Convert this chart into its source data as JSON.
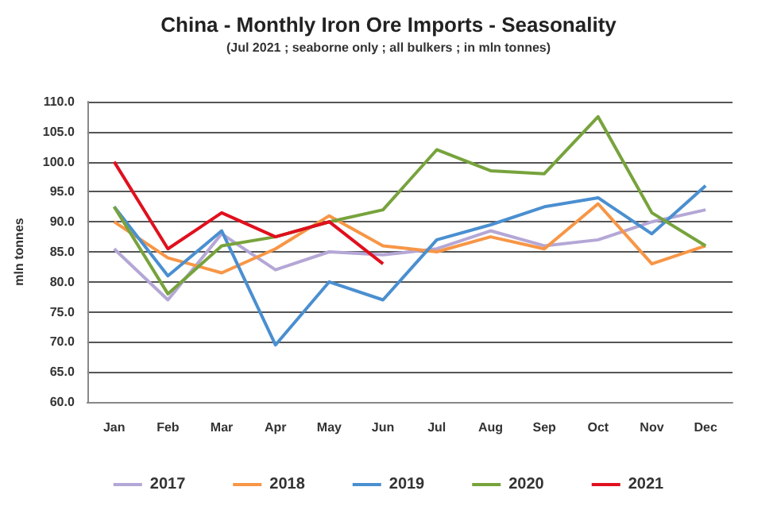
{
  "chart_data": {
    "type": "line",
    "title": "China - Monthly Iron Ore Imports - Seasonality",
    "subtitle": "(Jul 2021 ; seaborne only ; all bulkers ; in mln tonnes)",
    "ylabel": "mln tonnes",
    "categories": [
      "Jan",
      "Feb",
      "Mar",
      "Apr",
      "May",
      "Jun",
      "Jul",
      "Aug",
      "Sep",
      "Oct",
      "Nov",
      "Dec"
    ],
    "series": [
      {
        "name": "2017",
        "color": "#b4a7d6",
        "values": [
          85.5,
          77,
          88,
          82,
          85,
          84.5,
          85.5,
          88.5,
          86,
          87,
          90,
          92
        ]
      },
      {
        "name": "2018",
        "color": "#f79646",
        "values": [
          90,
          84,
          81.5,
          85.5,
          91,
          86,
          85,
          87.5,
          85.5,
          93,
          83,
          86
        ]
      },
      {
        "name": "2019",
        "color": "#4a8fd0",
        "values": [
          92.5,
          81,
          88.5,
          69.5,
          80,
          77,
          87,
          89.5,
          92.5,
          94,
          88,
          96
        ]
      },
      {
        "name": "2020",
        "color": "#77a33c",
        "values": [
          92.5,
          78,
          86,
          87.5,
          90,
          92,
          102,
          98.5,
          98,
          107.5,
          91.5,
          86
        ]
      },
      {
        "name": "2021",
        "color": "#e0101e",
        "values": [
          100,
          85.5,
          91.5,
          87.5,
          90,
          83,
          null,
          null,
          null,
          null,
          null,
          null
        ]
      }
    ],
    "ylim": [
      60,
      110
    ],
    "yticks": [
      {
        "value": 60,
        "label": "60.0"
      },
      {
        "value": 65,
        "label": "65.0"
      },
      {
        "value": 70,
        "label": "70.0"
      },
      {
        "value": 75,
        "label": "75.0"
      },
      {
        "value": 80,
        "label": "80.0"
      },
      {
        "value": 85,
        "label": "85.0"
      },
      {
        "value": 90,
        "label": "90.0"
      },
      {
        "value": 95,
        "label": "95.0"
      },
      {
        "value": 100,
        "label": "100.0"
      },
      {
        "value": 105,
        "label": "105.0"
      },
      {
        "value": 110,
        "label": "110.0"
      }
    ],
    "grid": "y",
    "legend": "bottom",
    "marker": "none",
    "line_style": "solid"
  }
}
